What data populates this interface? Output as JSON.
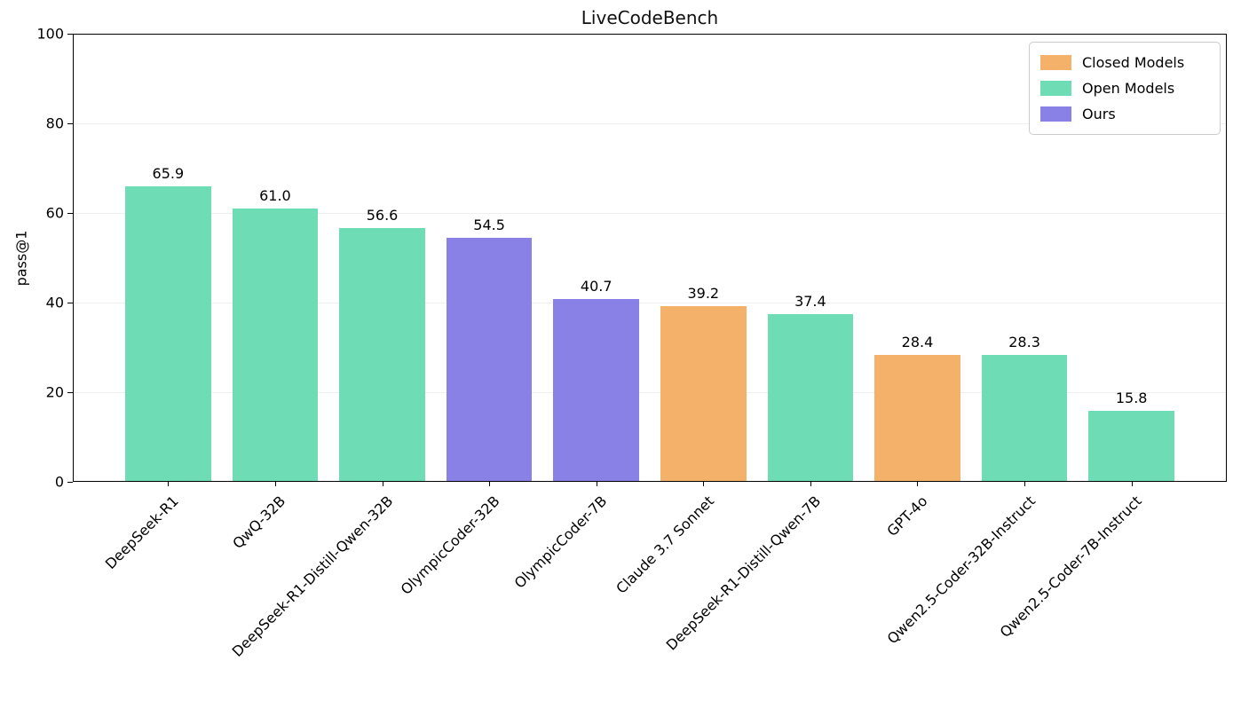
{
  "chart_data": {
    "type": "bar",
    "title": "LiveCodeBench",
    "ylabel": "pass@1",
    "xlabel": "",
    "ylim": [
      0,
      100
    ],
    "yticks": [
      0,
      20,
      40,
      60,
      80,
      100
    ],
    "grid": true,
    "legend_position": "upper right",
    "categories": [
      "DeepSeek-R1",
      "QwQ-32B",
      "DeepSeek-R1-Distill-Qwen-32B",
      "OlympicCoder-32B",
      "OlympicCoder-7B",
      "Claude 3.7 Sonnet",
      "DeepSeek-R1-Distill-Qwen-7B",
      "GPT-4o",
      "Qwen2.5-Coder-32B-Instruct",
      "Qwen2.5-Coder-7B-Instruct"
    ],
    "values": [
      65.9,
      61.0,
      56.6,
      54.5,
      40.7,
      39.2,
      37.4,
      28.4,
      28.3,
      15.8
    ],
    "bar_groups": [
      "open",
      "open",
      "open",
      "ours",
      "ours",
      "closed",
      "open",
      "closed",
      "open",
      "open"
    ],
    "colors": {
      "closed": "#f4b16a",
      "open": "#6eddb5",
      "ours": "#8a81e7"
    },
    "legend": [
      {
        "label": "Closed Models",
        "group": "closed"
      },
      {
        "label": "Open Models",
        "group": "open"
      },
      {
        "label": "Ours",
        "group": "ours"
      }
    ]
  }
}
